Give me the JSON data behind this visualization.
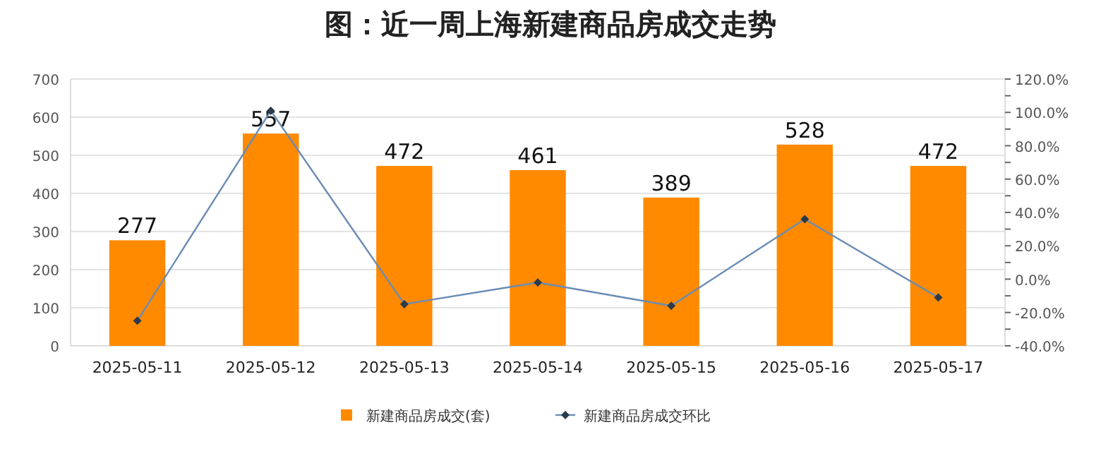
{
  "chart_data": {
    "type": "bar",
    "title": "图：近一周上海新建商品房成交走势",
    "categories": [
      "2025-05-11",
      "2025-05-12",
      "2025-05-13",
      "2025-05-14",
      "2025-05-15",
      "2025-05-16",
      "2025-05-17"
    ],
    "series": [
      {
        "name": "新建商品房成交(套)",
        "color": "#ff8a00",
        "values": [
          277,
          557,
          472,
          461,
          389,
          528,
          472
        ],
        "value_labels": [
          "277",
          "557",
          "472",
          "461",
          "389",
          "528",
          "472"
        ]
      },
      {
        "name": "新建商品房成交环比",
        "type": "line",
        "axis": "y2",
        "color": "#6a8bb5",
        "marker": "diamond",
        "values": [
          -25,
          101,
          -15,
          -2,
          -16,
          36,
          -11
        ]
      }
    ],
    "ylim": [
      0,
      700
    ],
    "yticks": [
      0,
      100,
      200,
      300,
      400,
      500,
      600,
      700
    ],
    "y2lim": [
      -40,
      120
    ],
    "y2ticks": [
      {
        "value": -40,
        "label": "-40.0%"
      },
      {
        "value": -30,
        "label": null
      },
      {
        "value": -20,
        "label": "-20.0%"
      },
      {
        "value": -10,
        "label": null
      },
      {
        "value": 0,
        "label": "0.0%"
      },
      {
        "value": 10,
        "label": null
      },
      {
        "value": 20,
        "label": "20.0%"
      },
      {
        "value": 30,
        "label": null
      },
      {
        "value": 40,
        "label": "40.0%"
      },
      {
        "value": 50,
        "label": null
      },
      {
        "value": 60,
        "label": "60.0%"
      },
      {
        "value": 70,
        "label": null
      },
      {
        "value": 80,
        "label": "80.0%"
      },
      {
        "value": 90,
        "label": null
      },
      {
        "value": 100,
        "label": "100.0%"
      },
      {
        "value": 110,
        "label": null
      },
      {
        "value": 120,
        "label": "120.0%"
      }
    ],
    "grid": "y",
    "legend": "bottom"
  }
}
